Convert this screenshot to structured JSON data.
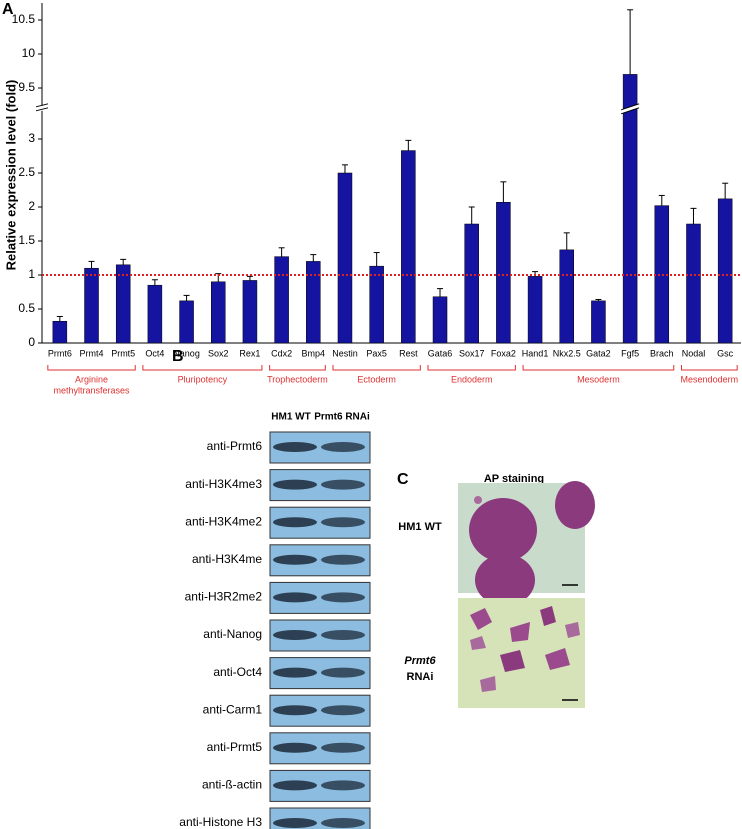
{
  "chart_data": {
    "type": "bar",
    "panel_label": "A",
    "ylabel": "Relative expression level (fold)",
    "categories": [
      "Prmt6",
      "Prmt4",
      "Prmt5",
      "Oct4",
      "Nanog",
      "Sox2",
      "Rex1",
      "Cdx2",
      "Bmp4",
      "Nestin",
      "Pax5",
      "Rest",
      "Gata6",
      "Sox17",
      "Foxa2",
      "Hand1",
      "Nkx2.5",
      "Gata2",
      "Fgf5",
      "Brach",
      "Nodal",
      "Gsc"
    ],
    "values": [
      0.32,
      1.1,
      1.15,
      0.85,
      0.62,
      0.9,
      0.92,
      1.27,
      1.2,
      2.5,
      1.13,
      2.83,
      0.68,
      1.75,
      2.07,
      0.98,
      1.37,
      0.62,
      9.7,
      2.02,
      1.75,
      2.12
    ],
    "errors": [
      0.07,
      0.1,
      0.08,
      0.08,
      0.08,
      0.12,
      0.06,
      0.13,
      0.1,
      0.12,
      0.2,
      0.15,
      0.12,
      0.25,
      0.3,
      0.07,
      0.25,
      0.02,
      0.95,
      0.15,
      0.23,
      0.23
    ],
    "color": "#1414a0",
    "ylim": [
      0,
      10.75
    ],
    "axis_break": [
      3.4,
      9.15
    ],
    "yticks": [
      0,
      0.5,
      1,
      1.5,
      2,
      2.5,
      3,
      9.5,
      10,
      10.5
    ],
    "reference_line": 1,
    "reference_color": "#e02020",
    "groups": [
      {
        "label": [
          "Arginine",
          "methyltransferases"
        ],
        "span": [
          0,
          2
        ]
      },
      {
        "label": [
          "Pluripotency"
        ],
        "span": [
          3,
          6
        ]
      },
      {
        "label": [
          "Trophectoderm"
        ],
        "span": [
          7,
          8
        ]
      },
      {
        "label": [
          "Ectoderm"
        ],
        "span": [
          9,
          11
        ]
      },
      {
        "label": [
          "Endoderm"
        ],
        "span": [
          12,
          14
        ]
      },
      {
        "label": [
          "Mesoderm"
        ],
        "span": [
          15,
          19
        ]
      },
      {
        "label": [
          "Mesendoderm"
        ],
        "span": [
          20,
          21
        ]
      }
    ],
    "group_color": "#e03030"
  },
  "panel_b": {
    "label": "B",
    "columns": [
      "HM1 WT",
      "Prmt6 RNAi"
    ],
    "rows": [
      "anti-Prmt6",
      "anti-H3K4me3",
      "anti-H3K4me2",
      "anti-H3K4me",
      "anti-H3R2me2",
      "anti-Nanog",
      "anti-Oct4",
      "anti-Carm1",
      "anti-Prmt5",
      "anti-ß-actin",
      "anti-Histone H3"
    ]
  },
  "panel_c": {
    "label": "C",
    "title": "AP staining",
    "row1": "HM1 WT",
    "row2_italic": "Prmt6",
    "row2": "RNAi"
  }
}
